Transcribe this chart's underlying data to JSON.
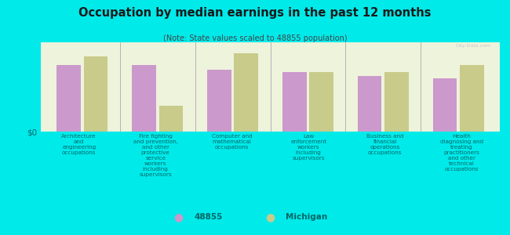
{
  "title": "Occupation by median earnings in the past 12 months",
  "subtitle": "(Note: State values scaled to 48855 population)",
  "background_color": "#00eaea",
  "plot_bg_color": "#eef3dc",
  "bar_color_48855": "#cc99cc",
  "bar_color_michigan": "#c8cb8a",
  "categories": [
    "Architecture\nand\nengineering\noccupations",
    "Fire fighting\nand prevention,\nand other\nprotective\nservice\nworkers\nincluding\nsupervisors",
    "Computer and\nmathematical\noccupations",
    "Law\nenforcement\nworkers\nincluding\nsupervisors",
    "Business and\nfinancial\noperations\noccupations",
    "Health\ndiagnosing and\ntreating\npractitioners\nand other\ntechnical\noccupations"
  ],
  "values_48855": [
    0.78,
    0.78,
    0.73,
    0.7,
    0.65,
    0.63
  ],
  "values_michigan": [
    0.88,
    0.3,
    0.92,
    0.7,
    0.7,
    0.78
  ],
  "ylim": [
    0,
    1.05
  ],
  "ylabel": "$0",
  "legend_labels": [
    "48855",
    "Michigan"
  ],
  "watermark": "City-Data.com",
  "title_color": "#1a1a1a",
  "subtitle_color": "#444444",
  "label_color": "#006666",
  "divider_color": "#aaaaaa"
}
